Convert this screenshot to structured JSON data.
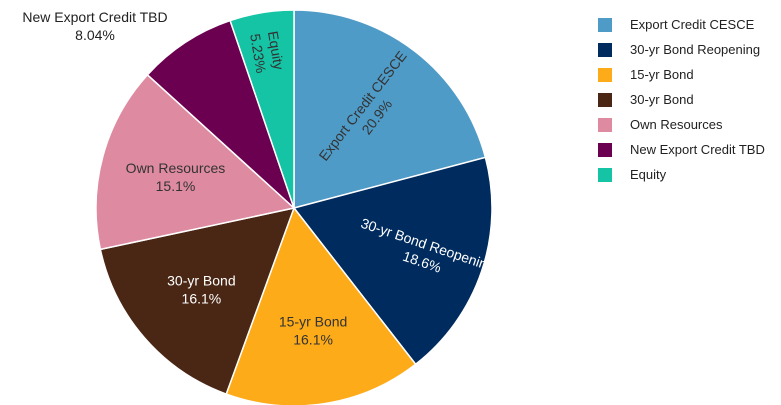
{
  "chart_data": {
    "type": "pie",
    "title": "",
    "slices": [
      {
        "label": "Export Credit CESCE",
        "value": 20.9,
        "value_label": "20.9%",
        "color": "#4f9bc7",
        "text_color": "#333333"
      },
      {
        "label": "30-yr Bond Reopening",
        "value": 18.6,
        "value_label": "18.6%",
        "color": "#002b5e",
        "text_color": "#ffffff"
      },
      {
        "label": "15-yr Bond",
        "value": 16.1,
        "value_label": "16.1%",
        "color": "#fdab18",
        "text_color": "#333333"
      },
      {
        "label": "30-yr Bond",
        "value": 16.1,
        "value_label": "16.1%",
        "color": "#4a2614",
        "text_color": "#ffffff"
      },
      {
        "label": "Own Resources",
        "value": 15.1,
        "value_label": "15.1%",
        "color": "#de8ba2",
        "text_color": "#333333"
      },
      {
        "label": "New Export Credit TBD",
        "value": 8.04,
        "value_label": "8.04%",
        "color": "#6b0051",
        "text_color": "#222222"
      },
      {
        "label": "Equity",
        "value": 5.23,
        "value_label": "5.23%",
        "color": "#15c3a5",
        "text_color": "#333333"
      }
    ],
    "legend_position": "right"
  }
}
